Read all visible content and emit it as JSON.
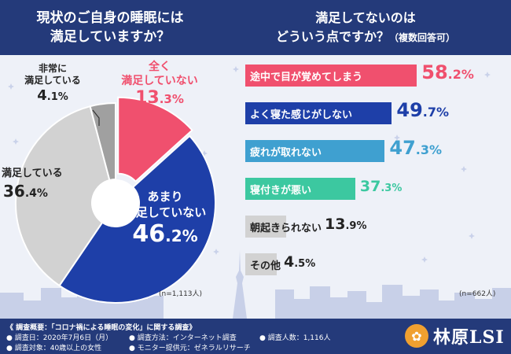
{
  "left_header": {
    "line1": "現状のご自身の睡眠には",
    "line2": "満足していますか？"
  },
  "right_header": {
    "line1": "満足してないのは",
    "line2": "どういう点ですか？",
    "sub": "（複数回答可）"
  },
  "chart_data": [
    {
      "type": "pie",
      "title": "現状のご自身の睡眠には満足していますか？",
      "slices": [
        {
          "label": "全く満足していない",
          "value": 13.3,
          "color": "#f0506e"
        },
        {
          "label": "あまり満足していない",
          "value": 46.2,
          "color": "#1e3fa8"
        },
        {
          "label": "満足している",
          "value": 36.4,
          "color": "#d2d2d2"
        },
        {
          "label": "非常に満足している",
          "value": 4.1,
          "color": "#a0a0a0"
        }
      ],
      "display": {
        "s1_line1": "全く",
        "s1_line2": "満足していない",
        "s1_int": "13",
        "s1_dec": ".3",
        "s1_pct": "%",
        "s2_line1": "あまり",
        "s2_line2": "満足していない",
        "s2_int": "46",
        "s2_dec": ".2",
        "s2_pct": "%",
        "s3_line1": "満足している",
        "s3_int": "36",
        "s3_dec": ".4",
        "s3_pct": "%",
        "s4_line1": "非常に",
        "s4_line2": "満足している",
        "s4_int": "4",
        "s4_dec": ".1",
        "s4_pct": "%"
      },
      "n_label": "(n=1,113人)"
    },
    {
      "type": "bar",
      "title": "満足してないのはどういう点ですか？（複数回答可）",
      "bars": [
        {
          "label": "途中で目が覚めてしまう",
          "value": 58.2,
          "int": "58",
          "dec": ".2",
          "pct": "%",
          "color": "#f0506e",
          "value_color": "#f0506e",
          "text_color": "#ffffff"
        },
        {
          "label": "よく寝た感じがしない",
          "value": 49.7,
          "int": "49",
          "dec": ".7",
          "pct": "%",
          "color": "#1e3fa8",
          "value_color": "#1e3fa8",
          "text_color": "#ffffff"
        },
        {
          "label": "疲れが取れない",
          "value": 47.3,
          "int": "47",
          "dec": ".3",
          "pct": "%",
          "color": "#3fa0d0",
          "value_color": "#3fa0d0",
          "text_color": "#ffffff"
        },
        {
          "label": "寝付きが悪い",
          "value": 37.3,
          "int": "37",
          "dec": ".3",
          "pct": "%",
          "color": "#3cc8a0",
          "value_color": "#3cc8a0",
          "text_color": "#ffffff"
        },
        {
          "label": "朝起きられない",
          "value": 13.9,
          "int": "13",
          "dec": ".9",
          "pct": "%",
          "color": "#d2d2d2",
          "value_color": "#222222",
          "text_color": "#222222"
        },
        {
          "label": "その他",
          "value": 4.5,
          "int": "4",
          "dec": ".5",
          "pct": "%",
          "color": "#d2d2d2",
          "value_color": "#222222",
          "text_color": "#222222"
        }
      ],
      "n_label": "(n=662人)"
    }
  ],
  "footer": {
    "title": "《 調査概要：「コロナ禍による睡眠の変化」に関する調査》",
    "date": "● 調査日：2020年7月6日（月）",
    "method": "● 調査方法：インターネット調査",
    "count": "● 調査人数：1,116人",
    "target": "● 調査対象：40歳以上の女性",
    "provider": "● モニター提供元：ゼネラルリサーチ"
  },
  "logo": {
    "text": "林原LSI",
    "icon": "sun-flower-icon"
  }
}
